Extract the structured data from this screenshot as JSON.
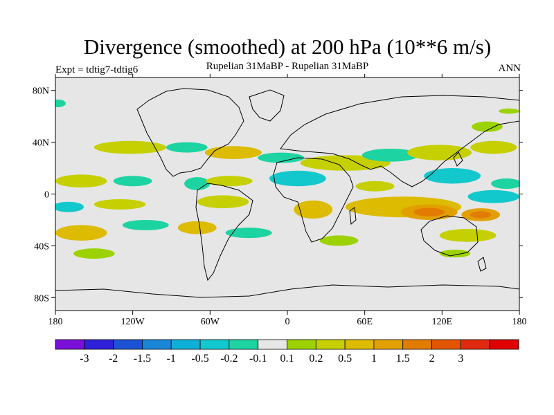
{
  "title": "Divergence (smoothed) at 200 hPa (10**6 m/s)",
  "subtitle_left": "Expt = tdtig7-tdtig6",
  "subtitle_center": "Rupelian  31MaBP - Rupelian  31MaBP",
  "subtitle_right": "ANN",
  "colors": {
    "background": "#e6e6e6",
    "coast": "#000000"
  },
  "axes": {
    "x_ticks": [
      {
        "value": -180,
        "label": "180"
      },
      {
        "value": -120,
        "label": "120W"
      },
      {
        "value": -60,
        "label": "60W"
      },
      {
        "value": 0,
        "label": "0"
      },
      {
        "value": 60,
        "label": "60E"
      },
      {
        "value": 120,
        "label": "120E"
      },
      {
        "value": 180,
        "label": "180"
      }
    ],
    "y_ticks": [
      {
        "value": 80,
        "label": "80N"
      },
      {
        "value": 40,
        "label": "40N"
      },
      {
        "value": 0,
        "label": "0"
      },
      {
        "value": -40,
        "label": "40S"
      },
      {
        "value": -80,
        "label": "80S"
      }
    ],
    "lon_range": [
      -180,
      180
    ],
    "lat_range": [
      -90,
      90
    ]
  },
  "colorbar": {
    "colors": [
      "#7a10d8",
      "#2f1fd8",
      "#1c52d4",
      "#1a86d8",
      "#0fb0d8",
      "#12c8cc",
      "#1dd3a2",
      "#e6e6e6",
      "#9cd200",
      "#c6d000",
      "#dcbb00",
      "#e2a000",
      "#e27c00",
      "#e25500",
      "#e02a10",
      "#e00000"
    ],
    "labels": [
      "-3",
      "-2",
      "-1.5",
      "-1",
      "-0.5",
      "-0.2",
      "-0.1",
      "0.1",
      "0.2",
      "0.5",
      "1",
      "1.5",
      "2",
      "3"
    ]
  },
  "chart_data": {
    "type": "heatmap",
    "title": "Divergence (smoothed) at 200 hPa (10**6 m/s)",
    "variable": "Divergence (smoothed) at 200 hPa",
    "units": "10**6 m/s",
    "experiment": "tdtig7-tdtig6",
    "period": "ANN",
    "levels": [
      -3,
      -2,
      -1.5,
      -1,
      -0.5,
      -0.2,
      -0.1,
      0.1,
      0.2,
      0.5,
      1,
      1.5,
      2,
      3
    ],
    "blobs": [
      {
        "lon": -178,
        "lat": 70,
        "rx": 6,
        "ry": 3,
        "v": -0.15
      },
      {
        "lon": -122,
        "lat": 36,
        "rx": 28,
        "ry": 5,
        "v": 0.3
      },
      {
        "lon": -78,
        "lat": 36,
        "rx": 16,
        "ry": 4,
        "v": -0.15
      },
      {
        "lon": -42,
        "lat": 32,
        "rx": 22,
        "ry": 5,
        "v": 0.5
      },
      {
        "lon": -5,
        "lat": 28,
        "rx": 18,
        "ry": 4,
        "v": -0.15
      },
      {
        "lon": 45,
        "lat": 24,
        "rx": 35,
        "ry": 6,
        "v": 0.3
      },
      {
        "lon": 80,
        "lat": 30,
        "rx": 22,
        "ry": 5,
        "v": -0.15
      },
      {
        "lon": 118,
        "lat": 32,
        "rx": 25,
        "ry": 6,
        "v": 0.3
      },
      {
        "lon": 160,
        "lat": 36,
        "rx": 18,
        "ry": 5,
        "v": 0.3
      },
      {
        "lon": 155,
        "lat": 52,
        "rx": 12,
        "ry": 4,
        "v": 0.15
      },
      {
        "lon": 172,
        "lat": 64,
        "rx": 8,
        "ry": 2,
        "v": 0.15
      },
      {
        "lon": -160,
        "lat": 10,
        "rx": 20,
        "ry": 5,
        "v": 0.3
      },
      {
        "lon": -120,
        "lat": 10,
        "rx": 15,
        "ry": 4,
        "v": -0.15
      },
      {
        "lon": -70,
        "lat": 8,
        "rx": 10,
        "ry": 5,
        "v": -0.15
      },
      {
        "lon": -45,
        "lat": 10,
        "rx": 18,
        "ry": 4,
        "v": 0.3
      },
      {
        "lon": 8,
        "lat": 12,
        "rx": 22,
        "ry": 6,
        "v": -0.3
      },
      {
        "lon": 68,
        "lat": 6,
        "rx": 15,
        "ry": 4,
        "v": 0.3
      },
      {
        "lon": 128,
        "lat": 14,
        "rx": 22,
        "ry": 6,
        "v": -0.3
      },
      {
        "lon": 170,
        "lat": 8,
        "rx": 12,
        "ry": 4,
        "v": -0.15
      },
      {
        "lon": -170,
        "lat": -10,
        "rx": 12,
        "ry": 4,
        "v": -0.3
      },
      {
        "lon": -130,
        "lat": -8,
        "rx": 20,
        "ry": 4,
        "v": 0.3
      },
      {
        "lon": -50,
        "lat": -6,
        "rx": 20,
        "ry": 5,
        "v": 0.3
      },
      {
        "lon": 20,
        "lat": -12,
        "rx": 15,
        "ry": 7,
        "v": 0.5
      },
      {
        "lon": 90,
        "lat": -10,
        "rx": 45,
        "ry": 8,
        "v": 0.5
      },
      {
        "lon": 110,
        "lat": -14,
        "rx": 22,
        "ry": 6,
        "v": 1.2
      },
      {
        "lon": 150,
        "lat": -16,
        "rx": 15,
        "ry": 5,
        "v": 1.2
      },
      {
        "lon": 160,
        "lat": -2,
        "rx": 20,
        "ry": 5,
        "v": -0.3
      },
      {
        "lon": -160,
        "lat": -30,
        "rx": 20,
        "ry": 6,
        "v": 0.5
      },
      {
        "lon": -110,
        "lat": -24,
        "rx": 18,
        "ry": 4,
        "v": -0.15
      },
      {
        "lon": -70,
        "lat": -26,
        "rx": 15,
        "ry": 5,
        "v": 0.5
      },
      {
        "lon": -30,
        "lat": -30,
        "rx": 18,
        "ry": 4,
        "v": -0.15
      },
      {
        "lon": 140,
        "lat": -32,
        "rx": 22,
        "ry": 5,
        "v": 0.3
      },
      {
        "lon": 40,
        "lat": -36,
        "rx": 15,
        "ry": 4,
        "v": 0.15
      },
      {
        "lon": -150,
        "lat": -46,
        "rx": 16,
        "ry": 4,
        "v": 0.15
      },
      {
        "lon": 130,
        "lat": -46,
        "rx": 12,
        "ry": 3,
        "v": 0.15
      }
    ]
  }
}
